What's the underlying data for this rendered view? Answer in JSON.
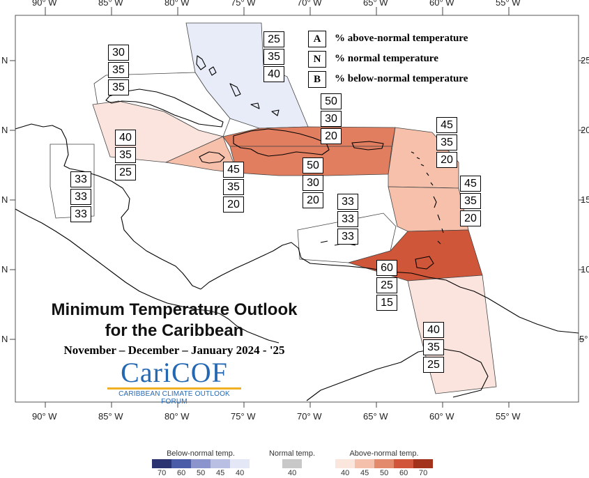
{
  "map": {
    "title_line1": "Minimum Temperature Outlook",
    "title_line2": "for the Caribbean",
    "period": "November – December – January 2024 - '25",
    "logo": "CariCOF",
    "logo_subtitle": "CARIBBEAN CLIMATE OUTLOOK FORUM",
    "lon_labels": [
      "90° W",
      "85° W",
      "80° W",
      "75° W",
      "70° W",
      "65° W",
      "60° W",
      "55° W"
    ],
    "lat_labels_left": [
      "N",
      "N",
      "N",
      "N",
      "N"
    ],
    "lat_labels_right": [
      "25",
      "20",
      "15",
      "10",
      "5°"
    ]
  },
  "key": [
    {
      "letter": "A",
      "text": "% above-normal temperature"
    },
    {
      "letter": "N",
      "text": "% normal temperature"
    },
    {
      "letter": "B",
      "text": "% below-normal temperature"
    }
  ],
  "regions": [
    {
      "id": "bahamas",
      "values": [
        "25",
        "35",
        "40"
      ],
      "fill": "#e8ecf8"
    },
    {
      "id": "cuba-north",
      "values": [
        "30",
        "35",
        "35"
      ],
      "fill": "#ffffff"
    },
    {
      "id": "cuba-cayman",
      "values": [
        "40",
        "35",
        "25"
      ],
      "fill": "#fbe4dd"
    },
    {
      "id": "jamaica",
      "values": [
        "45",
        "35",
        "20"
      ],
      "fill": "#f6c0ab"
    },
    {
      "id": "hispaniola-north",
      "values": [
        "50",
        "30",
        "20"
      ],
      "fill": "#e07e5f"
    },
    {
      "id": "hispaniola-south",
      "values": [
        "50",
        "30",
        "20"
      ],
      "fill": "#e07e5f"
    },
    {
      "id": "belize",
      "values": [
        "33",
        "33",
        "33"
      ],
      "fill": "#ffffff"
    },
    {
      "id": "leeward",
      "values": [
        "45",
        "35",
        "20"
      ],
      "fill": "#f6c0ab"
    },
    {
      "id": "windward",
      "values": [
        "45",
        "35",
        "20"
      ],
      "fill": "#f6c0ab"
    },
    {
      "id": "abc-islands",
      "values": [
        "33",
        "33",
        "33"
      ],
      "fill": "#ffffff"
    },
    {
      "id": "trinidad",
      "values": [
        "60",
        "25",
        "15"
      ],
      "fill": "#cf5638"
    },
    {
      "id": "guianas",
      "values": [
        "40",
        "35",
        "25"
      ],
      "fill": "#fbe4dd"
    }
  ],
  "colorbar": {
    "below": {
      "title": "Below-normal temp.",
      "colors": [
        "#2b3470",
        "#4a5ba8",
        "#8b94cc",
        "#b8bfe3",
        "#e4e8f6"
      ],
      "ticks": [
        "70",
        "60",
        "50",
        "45",
        "40"
      ]
    },
    "normal": {
      "title": "Normal temp.",
      "colors": [
        "#c8c8c8"
      ],
      "ticks": [
        "40"
      ]
    },
    "above": {
      "title": "Above-normal temp.",
      "colors": [
        "#fbe6de",
        "#f5c0ab",
        "#e48a6c",
        "#d0553a",
        "#a3321d"
      ],
      "ticks": [
        "40",
        "45",
        "50",
        "60",
        "70"
      ]
    }
  }
}
